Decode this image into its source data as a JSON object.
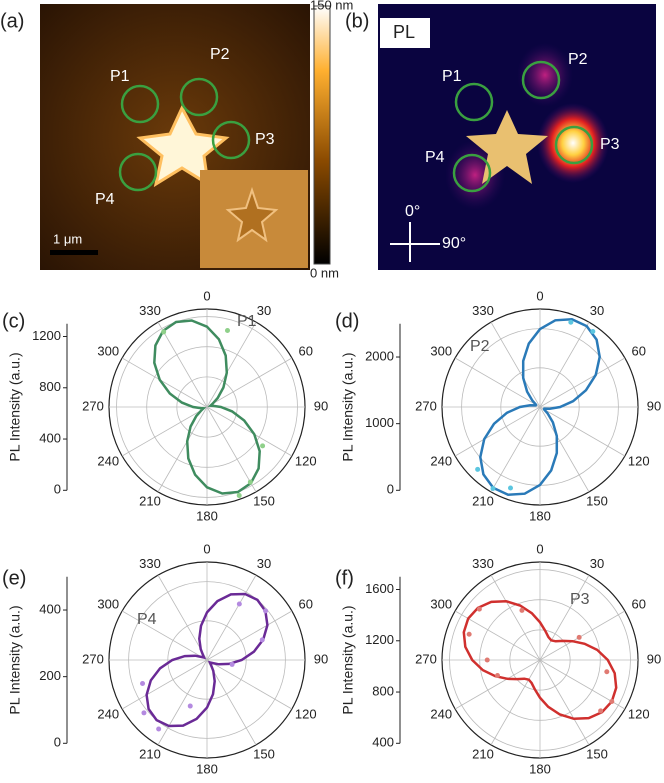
{
  "images": [
    {
      "label": "(a)",
      "points": [
        "P1",
        "P2",
        "P3",
        "P4"
      ],
      "colorbar_max": "150 nm",
      "colorbar_min": "0 nm",
      "scale_bar": "1 μm"
    },
    {
      "label": "(b)",
      "title": "PL",
      "points": [
        "P1",
        "P2",
        "P3",
        "P4"
      ],
      "axis_up": "0°",
      "axis_right": "90°"
    }
  ],
  "chart_data": [
    {
      "type": "polar",
      "panel": "(c)",
      "annotation": "P1",
      "ylabel": "PL Intensity (a.u.)",
      "ylim": [
        0,
        1300
      ],
      "yticks": [
        0,
        400,
        800,
        1200
      ],
      "thetaticks": [
        0,
        30,
        60,
        90,
        120,
        150,
        180,
        210,
        240,
        270,
        300,
        330
      ],
      "series": [
        {
          "name": "fit",
          "color": "#3f8c5f",
          "x": [
            0,
            10,
            20,
            30,
            40,
            50,
            60,
            70,
            80,
            90,
            100,
            110,
            120,
            130,
            140,
            150,
            160,
            170,
            180,
            190,
            200,
            210,
            220,
            230,
            240,
            250,
            260,
            270,
            280,
            290,
            300,
            310,
            320,
            330,
            340,
            350
          ],
          "values": [
            1065,
            912,
            725,
            525,
            338,
            185,
            85,
            50,
            85,
            185,
            338,
            525,
            725,
            912,
            1065,
            1165,
            1200,
            1165,
            1065,
            912,
            725,
            525,
            338,
            185,
            85,
            50,
            85,
            185,
            338,
            525,
            725,
            912,
            1065,
            1165,
            1200,
            1165
          ]
        },
        {
          "name": "data",
          "color": "#8fd08a",
          "x": [
            330,
            15,
            125,
            150,
            160
          ],
          "values": [
            1150,
            1050,
            900,
            1150,
            1250
          ]
        }
      ]
    },
    {
      "type": "polar",
      "panel": "(d)",
      "annotation": "P2",
      "ylabel": "PL Intensity (a.u.)",
      "ylim": [
        0,
        2500
      ],
      "yticks": [
        0,
        1000,
        2000
      ],
      "thetaticks": [
        0,
        30,
        60,
        90,
        120,
        150,
        180,
        210,
        240,
        270,
        300,
        330
      ],
      "series": [
        {
          "name": "fit",
          "color": "#2a7ab8",
          "x": [
            0,
            10,
            20,
            30,
            40,
            50,
            60,
            70,
            80,
            90,
            100,
            110,
            120,
            130,
            140,
            150,
            160,
            170,
            180,
            190,
            200,
            210,
            220,
            230,
            240,
            250,
            260,
            270,
            280,
            290,
            300,
            310,
            320,
            330,
            340,
            350
          ],
          "values": [
            1988,
            2246,
            2382,
            2382,
            2246,
            1988,
            1643,
            1250,
            857,
            512,
            254,
            117,
            117,
            254,
            512,
            857,
            1250,
            1643,
            1988,
            2246,
            2382,
            2382,
            2246,
            1988,
            1643,
            1250,
            857,
            512,
            254,
            117,
            117,
            254,
            512,
            857,
            1250,
            1643
          ]
        },
        {
          "name": "data",
          "color": "#5cc6e0",
          "x": [
            20,
            35,
            200,
            210,
            225
          ],
          "values": [
            2300,
            2350,
            2200,
            2400,
            2250
          ]
        }
      ]
    },
    {
      "type": "polar",
      "panel": "(e)",
      "annotation": "P4",
      "ylabel": "PL Intensity (a.u.)",
      "ylim": [
        0,
        500
      ],
      "yticks": [
        0,
        200,
        400
      ],
      "thetaticks": [
        0,
        30,
        60,
        90,
        120,
        150,
        180,
        210,
        240,
        270,
        300,
        330
      ],
      "series": [
        {
          "name": "fit",
          "color": "#6a2a96",
          "x": [
            0,
            10,
            20,
            30,
            40,
            50,
            60,
            70,
            80,
            90,
            100,
            110,
            120,
            130,
            140,
            150,
            160,
            170,
            180,
            190,
            200,
            210,
            220,
            230,
            240,
            250,
            260,
            270,
            280,
            290,
            300,
            310,
            320,
            330,
            340,
            350
          ],
          "values": [
            243,
            305,
            356,
            389,
            400,
            389,
            356,
            305,
            243,
            177,
            115,
            64,
            31,
            20,
            31,
            64,
            115,
            177,
            243,
            305,
            356,
            389,
            400,
            389,
            356,
            305,
            243,
            177,
            115,
            64,
            31,
            20,
            31,
            64,
            115,
            177
          ]
        },
        {
          "name": "data",
          "color": "#b48ae0",
          "x": [
            30,
            50,
            70,
            100,
            200,
            215,
            230,
            250
          ],
          "values": [
            330,
            390,
            300,
            130,
            250,
            430,
            420,
            350
          ]
        }
      ]
    },
    {
      "type": "polar",
      "panel": "(f)",
      "annotation": "P3",
      "ylabel": "PL Intensity (a.u.)",
      "ylim": [
        400,
        1700
      ],
      "yticks": [
        400,
        800,
        1200,
        1600
      ],
      "thetaticks": [
        0,
        30,
        60,
        90,
        120,
        150,
        180,
        210,
        240,
        270,
        300,
        330
      ],
      "series": [
        {
          "name": "fit",
          "color": "#d0302e",
          "x": [
            0,
            10,
            20,
            30,
            40,
            50,
            60,
            70,
            80,
            90,
            100,
            110,
            120,
            130,
            140,
            150,
            160,
            170,
            180,
            190,
            200,
            210,
            220,
            230,
            240,
            250,
            260,
            270,
            280,
            290,
            300,
            310,
            320,
            330,
            340,
            350
          ],
          "values": [
            900,
            794,
            724,
            700,
            724,
            794,
            900,
            1030,
            1170,
            1300,
            1406,
            1476,
            1500,
            1476,
            1406,
            1300,
            1170,
            1030,
            900,
            794,
            724,
            700,
            724,
            794,
            900,
            1030,
            1170,
            1300,
            1406,
            1476,
            1500,
            1476,
            1406,
            1300,
            1170,
            1030
          ]
        },
        {
          "name": "data",
          "color": "#e07a72",
          "x": [
            290,
            310,
            340,
            60,
            100,
            120,
            130,
            250,
            270
          ],
          "values": [
            1400,
            1450,
            1100,
            1000,
            1300,
            1500,
            1450,
            1000,
            1100
          ]
        }
      ]
    }
  ]
}
